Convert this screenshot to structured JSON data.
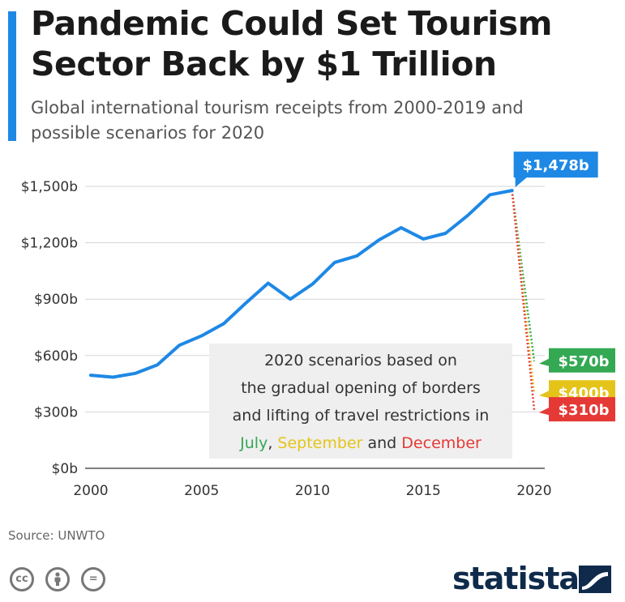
{
  "header": {
    "title": "Pandemic Could Set Tourism Sector Back by $1 Trillion",
    "subtitle": "Global international tourism receipts from 2000-2019 and possible scenarios for 2020"
  },
  "chart_data": {
    "type": "line",
    "title": "Pandemic Could Set Tourism Sector Back by $1 Trillion",
    "subtitle": "Global international tourism receipts from 2000-2019 and possible scenarios for 2020",
    "xlabel": "",
    "ylabel": "",
    "xlim": [
      2000,
      2020
    ],
    "ylim": [
      0,
      1500
    ],
    "x_ticks": [
      2000,
      2005,
      2010,
      2015,
      2020
    ],
    "y_ticks": [
      0,
      300,
      600,
      900,
      1200,
      1500
    ],
    "y_tick_labels": [
      "$0b",
      "$300b",
      "$600b",
      "$900b",
      "$1,200b",
      "$1,500b"
    ],
    "grid": true,
    "series": [
      {
        "x": [
          2000,
          2001,
          2002,
          2003,
          2004,
          2005,
          2006,
          2007,
          2008,
          2009,
          2010,
          2011,
          2012,
          2013,
          2014,
          2015,
          2016,
          2017,
          2018,
          2019
        ],
        "values": [
          495,
          485,
          505,
          550,
          655,
          705,
          770,
          880,
          985,
          900,
          980,
          1095,
          1130,
          1215,
          1280,
          1220,
          1250,
          1345,
          1455,
          1478
        ],
        "color": "#1e88e5"
      }
    ],
    "scenarios": [
      {
        "name": "July",
        "x": [
          2019,
          2020
        ],
        "values": [
          1478,
          570
        ],
        "color": "#34a853",
        "label": "$570b"
      },
      {
        "name": "September",
        "x": [
          2019,
          2020
        ],
        "values": [
          1478,
          400
        ],
        "color": "#e5c41a",
        "label": "$400b"
      },
      {
        "name": "December",
        "x": [
          2019,
          2020
        ],
        "values": [
          1478,
          310
        ],
        "color": "#e53935",
        "label": "$310b"
      }
    ],
    "callout": {
      "x": 2019,
      "value": 1478,
      "label": "$1,478b",
      "color": "#1e88e5"
    },
    "annotation": {
      "line1": "2020 scenarios based on",
      "line2": "the gradual opening of borders",
      "line3": "and lifting of travel restrictions in",
      "july": "July",
      "comma": ",",
      "september": "September",
      "and": "and",
      "december": "December"
    }
  },
  "footer": {
    "source": "Source: UNWTO",
    "license_icons": [
      "cc-icon",
      "attribution-icon",
      "no-derivatives-icon"
    ],
    "cc_label": "cc",
    "nd_label": "=",
    "logo_text": "statista"
  }
}
